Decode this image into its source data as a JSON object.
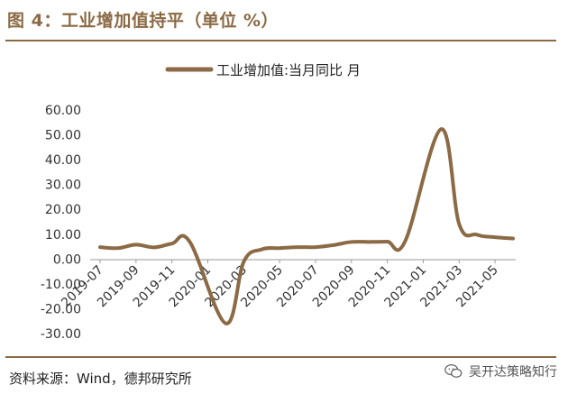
{
  "figure": {
    "title": "图 4：工业增加值持平（单位 %）",
    "source": "资料来源：Wind，德邦研究所",
    "watermark": "吴开达策略知行",
    "watermark_icon": "wechat-icon"
  },
  "colors": {
    "accent": "#8B6A45",
    "series_line": "#8B6A45",
    "axis": "#999999"
  },
  "chart_data": {
    "type": "line",
    "title": "",
    "xlabel": "",
    "ylabel": "",
    "ylim": [
      -30,
      60
    ],
    "yticks": [
      -30,
      -20,
      -10,
      0,
      10,
      20,
      30,
      40,
      50,
      60
    ],
    "ytick_labels": [
      "-30.00",
      "-20.00",
      "-10.00",
      "0.00",
      "10.00",
      "20.00",
      "30.00",
      "40.00",
      "50.00",
      "60.00"
    ],
    "grid": false,
    "legend": "top-center",
    "x": [
      "2019-07",
      "2019-08",
      "2019-09",
      "2019-10",
      "2019-11",
      "2019-12",
      "2020-02",
      "2020-03",
      "2020-04",
      "2020-05",
      "2020-06",
      "2020-07",
      "2020-08",
      "2020-09",
      "2020-10",
      "2020-11",
      "2020-12",
      "2021-02",
      "2021-03",
      "2021-04",
      "2021-05",
      "2021-06"
    ],
    "xtick_labels": [
      "2019-07",
      "2019-09",
      "2019-11",
      "2020-01",
      "2020-03",
      "2020-05",
      "2020-07",
      "2020-09",
      "2020-11",
      "2021-01",
      "2021-03",
      "2021-05"
    ],
    "series": [
      {
        "name": "工业增加值:当月同比 月",
        "values": [
          4.8,
          4.4,
          5.8,
          4.7,
          6.2,
          6.9,
          -25.9,
          -1.1,
          3.9,
          4.4,
          4.8,
          4.8,
          5.6,
          6.9,
          6.9,
          7.0,
          7.3,
          52.3,
          14.1,
          9.8,
          8.8,
          8.3
        ]
      }
    ]
  }
}
